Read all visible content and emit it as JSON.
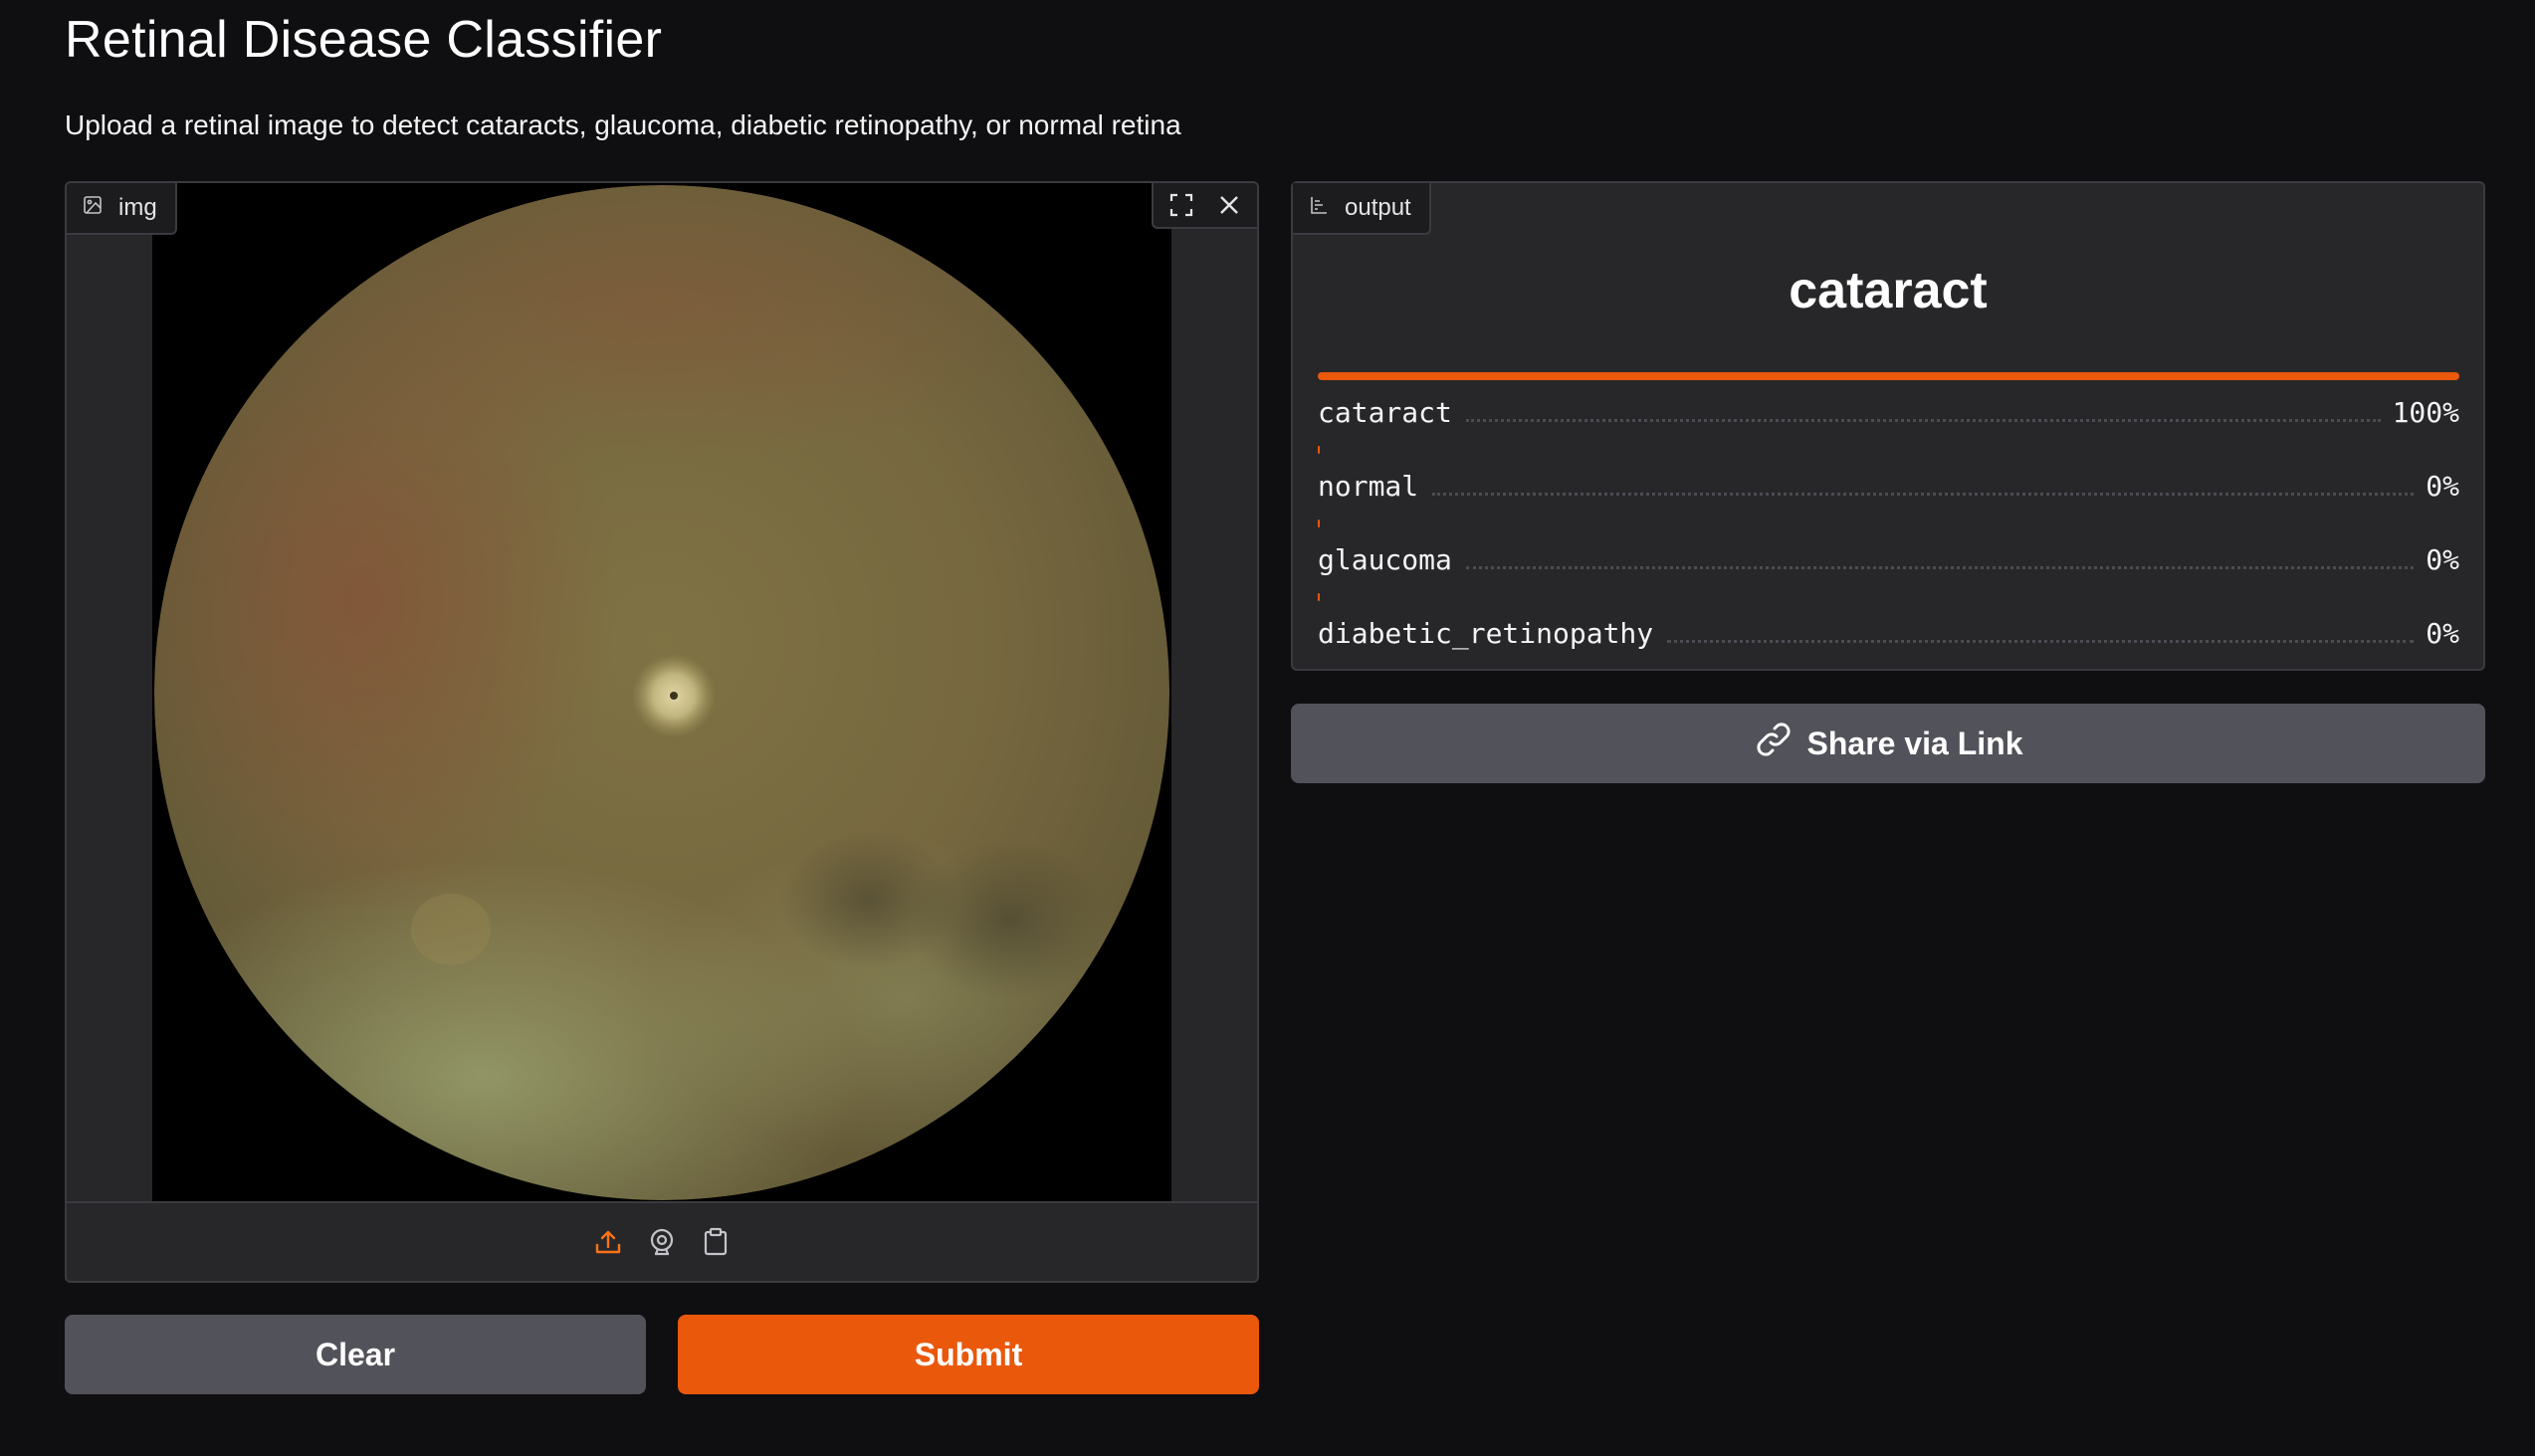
{
  "app": {
    "title": "Retinal Disease Classifier",
    "description": "Upload a retinal image to detect cataracts, glaucoma, diabetic retinopathy, or normal retina"
  },
  "input": {
    "label": "img",
    "image_content": "retinal fundus photograph",
    "controls": [
      "fullscreen-icon",
      "close-icon"
    ],
    "sources": [
      "upload-icon",
      "webcam-icon",
      "clipboard-icon"
    ]
  },
  "buttons": {
    "clear": "Clear",
    "submit": "Submit",
    "share": "Share via Link"
  },
  "output": {
    "label": "output",
    "top_prediction": "cataract",
    "confidences": [
      {
        "label": "cataract",
        "value_text": "100%",
        "value": 1.0
      },
      {
        "label": "normal",
        "value_text": "0%",
        "value": 0.0
      },
      {
        "label": "glaucoma",
        "value_text": "0%",
        "value": 0.0
      },
      {
        "label": "diabetic_retinopathy",
        "value_text": "0%",
        "value": 0.0
      }
    ]
  },
  "colors": {
    "background": "#0f0f11",
    "panel": "#27272a",
    "accent": "#ea580c",
    "secondary_button": "#52525b"
  }
}
